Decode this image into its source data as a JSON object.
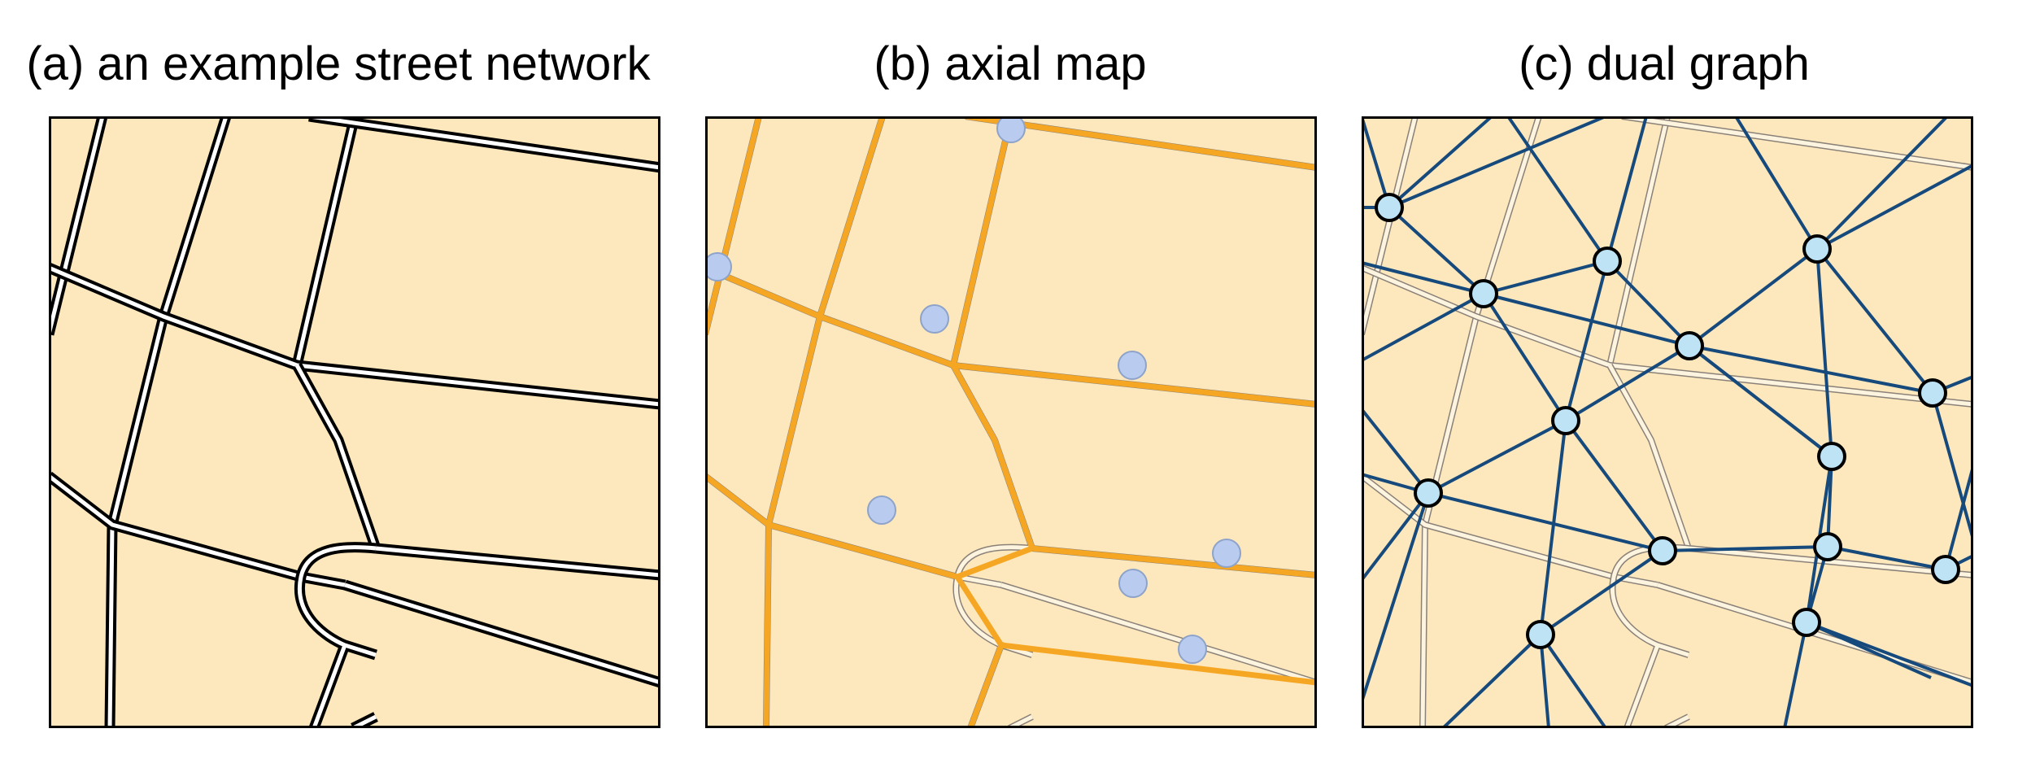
{
  "titles": {
    "a": "(a) an example street network",
    "b": "(b) axial map",
    "c": "(c) dual graph"
  },
  "colors": {
    "background": "#fde8bd",
    "street_edge": "#000000",
    "street_fill": "#ffffff",
    "street_faint": "#8a8178",
    "axial_line": "#f5a623",
    "axial_node": "#b9cbef",
    "dual_edge": "#174a7c",
    "dual_node": "#bde3f5",
    "frame": "#000000"
  }
}
